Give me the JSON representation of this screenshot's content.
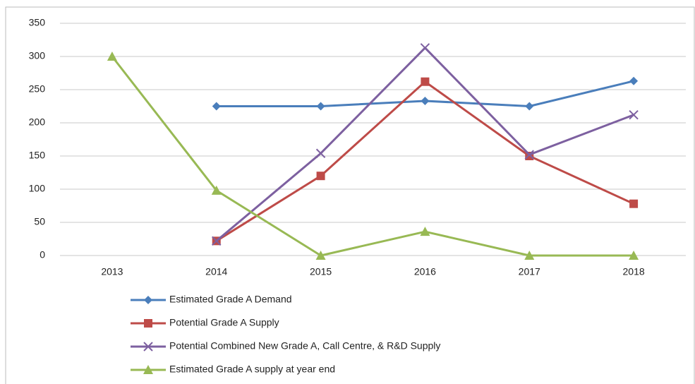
{
  "chart_data": {
    "type": "line",
    "categories": [
      "2013",
      "2014",
      "2015",
      "2016",
      "2017",
      "2018"
    ],
    "series": [
      {
        "name": "Estimated Grade A Demand",
        "color": "#4a7ebb",
        "marker": "diamond",
        "values": [
          null,
          225,
          225,
          233,
          225,
          263
        ]
      },
      {
        "name": "Potential Grade A Supply",
        "color": "#be4b48",
        "marker": "square",
        "values": [
          null,
          22,
          120,
          262,
          150,
          78
        ]
      },
      {
        "name": "Potential Combined New Grade A, Call Centre, & R&D Supply",
        "color": "#7d60a0",
        "marker": "x",
        "values": [
          null,
          22,
          154,
          313,
          152,
          212
        ]
      },
      {
        "name": "Estimated Grade A supply at year end",
        "color": "#98b954",
        "marker": "triangle",
        "values": [
          300,
          98,
          0,
          36,
          0,
          0
        ]
      }
    ],
    "ylim": [
      0,
      350
    ],
    "yticks": [
      0,
      50,
      100,
      150,
      200,
      250,
      300,
      350
    ],
    "grid": true,
    "legend": "bottom"
  }
}
